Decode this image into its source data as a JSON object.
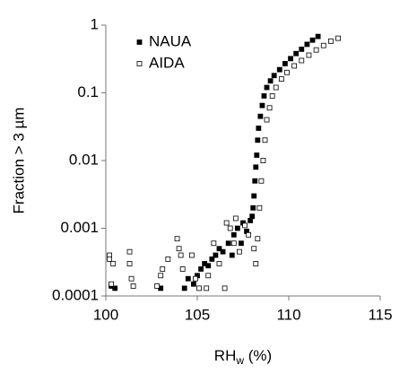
{
  "chart_data": {
    "type": "scatter",
    "ylabel": "Fraction > 3 µm",
    "xlabel": {
      "main": "RH",
      "sub": "w",
      "unit": " (%)"
    },
    "xlim": [
      100,
      115
    ],
    "xticks": [
      100,
      105,
      110,
      115
    ],
    "ylim": [
      0.0001,
      1
    ],
    "yticks": [
      0.0001,
      0.001,
      0.01,
      0.1,
      1
    ],
    "log_y": true,
    "grid": false,
    "legend": "upper left",
    "series": [
      {
        "name": "NAUA",
        "color": "#000000",
        "marker": "filled",
        "x": [
          100.3,
          100.5,
          103.0,
          104.3,
          104.5,
          104.8,
          105.0,
          105.2,
          105.4,
          105.6,
          105.8,
          106.0,
          106.2,
          106.4,
          106.7,
          106.9,
          107.0,
          107.2,
          107.4,
          107.5,
          107.7,
          107.9,
          108.0,
          108.05,
          108.1,
          108.15,
          108.2,
          108.25,
          108.3,
          108.35,
          108.45,
          108.55,
          108.65,
          108.8,
          109.0,
          109.2,
          109.5,
          109.8,
          110.1,
          110.4,
          110.7,
          111.0,
          111.3,
          111.6
        ],
        "values": [
          0.00014,
          0.00013,
          0.00013,
          0.00013,
          0.00018,
          0.00015,
          0.0002,
          0.00025,
          0.0003,
          0.00028,
          0.00035,
          0.0004,
          0.0005,
          0.00045,
          0.0006,
          0.0004,
          0.0008,
          0.001,
          0.0006,
          0.0012,
          0.0009,
          0.0013,
          0.0015,
          0.002,
          0.003,
          0.005,
          0.008,
          0.012,
          0.02,
          0.03,
          0.045,
          0.065,
          0.09,
          0.12,
          0.15,
          0.18,
          0.22,
          0.27,
          0.32,
          0.38,
          0.44,
          0.52,
          0.6,
          0.68
        ]
      },
      {
        "name": "AIDA",
        "color": "#000000",
        "marker": "open",
        "x": [
          100.2,
          100.2,
          100.3,
          100.4,
          101.3,
          101.3,
          101.4,
          101.5,
          102.8,
          103.0,
          103.1,
          103.4,
          103.9,
          104.0,
          104.1,
          104.2,
          104.7,
          104.9,
          105.1,
          105.5,
          105.6,
          105.9,
          106.2,
          106.5,
          106.6,
          106.8,
          107.0,
          107.1,
          107.3,
          107.6,
          107.8,
          108.1,
          108.2,
          108.3,
          108.4,
          108.5,
          108.6,
          108.7,
          108.8,
          108.95,
          109.1,
          109.3,
          109.6,
          109.9,
          110.3,
          110.7,
          111.1,
          111.5,
          111.9,
          112.3,
          112.7
        ],
        "values": [
          0.0004,
          0.00035,
          0.00015,
          0.0003,
          0.00045,
          0.0003,
          0.00018,
          0.00014,
          0.00014,
          0.0002,
          0.00025,
          0.00035,
          0.0007,
          0.0005,
          0.0004,
          0.00025,
          0.0004,
          0.00018,
          0.00013,
          0.00013,
          0.0002,
          0.0006,
          0.0003,
          0.00013,
          0.0012,
          0.001,
          0.0006,
          0.0014,
          0.00045,
          0.0011,
          0.0008,
          0.0005,
          0.0003,
          0.0007,
          0.002,
          0.005,
          0.01,
          0.02,
          0.04,
          0.06,
          0.09,
          0.12,
          0.16,
          0.2,
          0.25,
          0.3,
          0.36,
          0.43,
          0.5,
          0.58,
          0.64
        ]
      }
    ]
  }
}
